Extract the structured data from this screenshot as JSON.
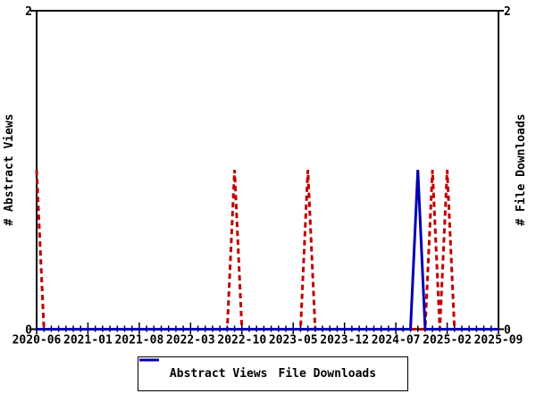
{
  "chart_data": {
    "type": "line",
    "title": "",
    "x_axis": {
      "start_month": "2020-06",
      "end_month": "2025-09",
      "interval": "monthly",
      "n_points": 64,
      "major_tick_every_months": 7,
      "tick_labels": [
        "2020-06",
        "2021-01",
        "2021-08",
        "2022-03",
        "2022-10",
        "2023-05",
        "2023-12",
        "2024-07",
        "2025-02",
        "2025-09"
      ]
    },
    "y_axis_left": {
      "label": "# Abstract Views",
      "min": 0,
      "max": 2,
      "tick_values": [
        0,
        2
      ],
      "tick_labels": [
        "0",
        "2"
      ]
    },
    "y_axis_right": {
      "label": "# File Downloads",
      "min": 0,
      "max": 2,
      "tick_values": [
        0,
        2
      ],
      "tick_labels": [
        "0",
        "2"
      ]
    },
    "series": [
      {
        "name": "Abstract Views",
        "color": "#c00000",
        "style": "dashed",
        "baseline_value": 0,
        "spikes": {
          "2020-06": 1,
          "2022-09": 1,
          "2023-07": 1,
          "2024-12": 1,
          "2025-02": 1
        }
      },
      {
        "name": "File Downloads",
        "color": "#0000b0",
        "style": "solid",
        "baseline_value": 0,
        "spikes": {
          "2024-10": 1
        }
      }
    ],
    "legend": {
      "position": "bottom-center",
      "entries": [
        "Abstract Views",
        "File Downloads"
      ]
    },
    "colors": {
      "axis": "#000000",
      "background": "#ffffff",
      "text": "#000000"
    }
  }
}
